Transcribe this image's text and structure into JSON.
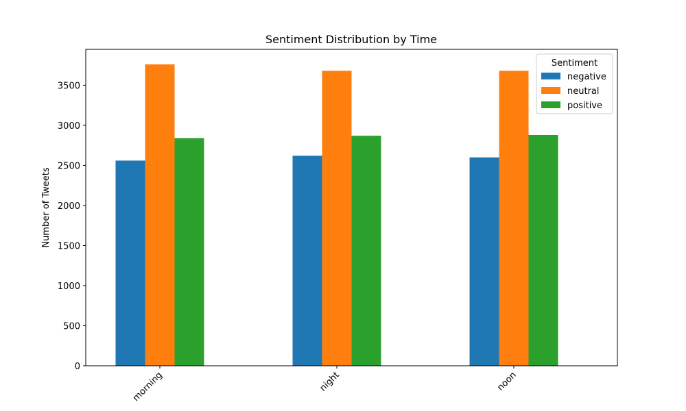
{
  "chart_data": {
    "type": "bar",
    "title": "Sentiment Distribution by Time",
    "xlabel": "",
    "ylabel": "Number of Tweets",
    "categories": [
      "morning",
      "night",
      "noon"
    ],
    "series": [
      {
        "name": "negative",
        "color": "#1f77b4",
        "values": [
          2560,
          2620,
          2600
        ]
      },
      {
        "name": "neutral",
        "color": "#ff7f0e",
        "values": [
          3760,
          3680,
          3680
        ]
      },
      {
        "name": "positive",
        "color": "#2ca02c",
        "values": [
          2840,
          2870,
          2880
        ]
      }
    ],
    "ylim": [
      0,
      3948
    ],
    "yticks": [
      0,
      500,
      1000,
      1500,
      2000,
      2500,
      3000,
      3500
    ],
    "grid": false,
    "legend": {
      "title": "Sentiment",
      "placement": "top-right"
    }
  }
}
